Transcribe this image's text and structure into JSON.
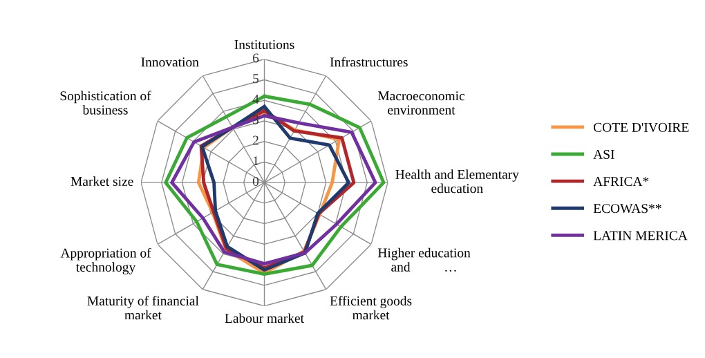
{
  "chart_data": {
    "type": "radar",
    "categories": [
      "Institutions",
      "Infrastructures",
      "Macroeconomic\nenvironment",
      "Health and Elementary\neducation",
      "Higher education\nand          …",
      "Efficient goods\nmarket",
      "Labour market",
      "Maturity of financial\nmarket",
      "Appropriation of\ntechnology",
      "Market size",
      "Sophistication of\nbusiness",
      "Innovation"
    ],
    "series": [
      {
        "name": "COTE D'IVOIRE",
        "color": "#f79646",
        "values": [
          3.45,
          2.95,
          4.2,
          3.3,
          3.1,
          3.85,
          4.4,
          3.75,
          2.9,
          3.2,
          3.4,
          3.1
        ]
      },
      {
        "name": "ASI",
        "color": "#3aaa35",
        "values": [
          4.2,
          4.4,
          5.35,
          5.8,
          4.3,
          4.65,
          4.45,
          4.6,
          3.8,
          4.8,
          4.35,
          3.7
        ]
      },
      {
        "name": "AFRICA*",
        "color": "#b0262a",
        "values": [
          3.5,
          2.9,
          4.35,
          4.35,
          3.05,
          3.9,
          4.15,
          3.7,
          2.85,
          2.95,
          3.55,
          3.1
        ]
      },
      {
        "name": "ECOWAS**",
        "color": "#1f3a6e",
        "values": [
          3.7,
          2.5,
          3.65,
          4.1,
          3.0,
          3.95,
          4.25,
          3.6,
          2.75,
          2.45,
          3.5,
          3.1
        ]
      },
      {
        "name": "LATIN MERICA",
        "color": "#7030a0",
        "values": [
          3.25,
          3.35,
          4.9,
          5.4,
          4.05,
          3.95,
          3.95,
          3.9,
          3.45,
          4.5,
          3.95,
          3.1
        ]
      }
    ],
    "ylim": [
      0,
      6
    ],
    "yticks": [
      0,
      1,
      2,
      3,
      4,
      5,
      6
    ],
    "grid": true,
    "legend": "right"
  }
}
